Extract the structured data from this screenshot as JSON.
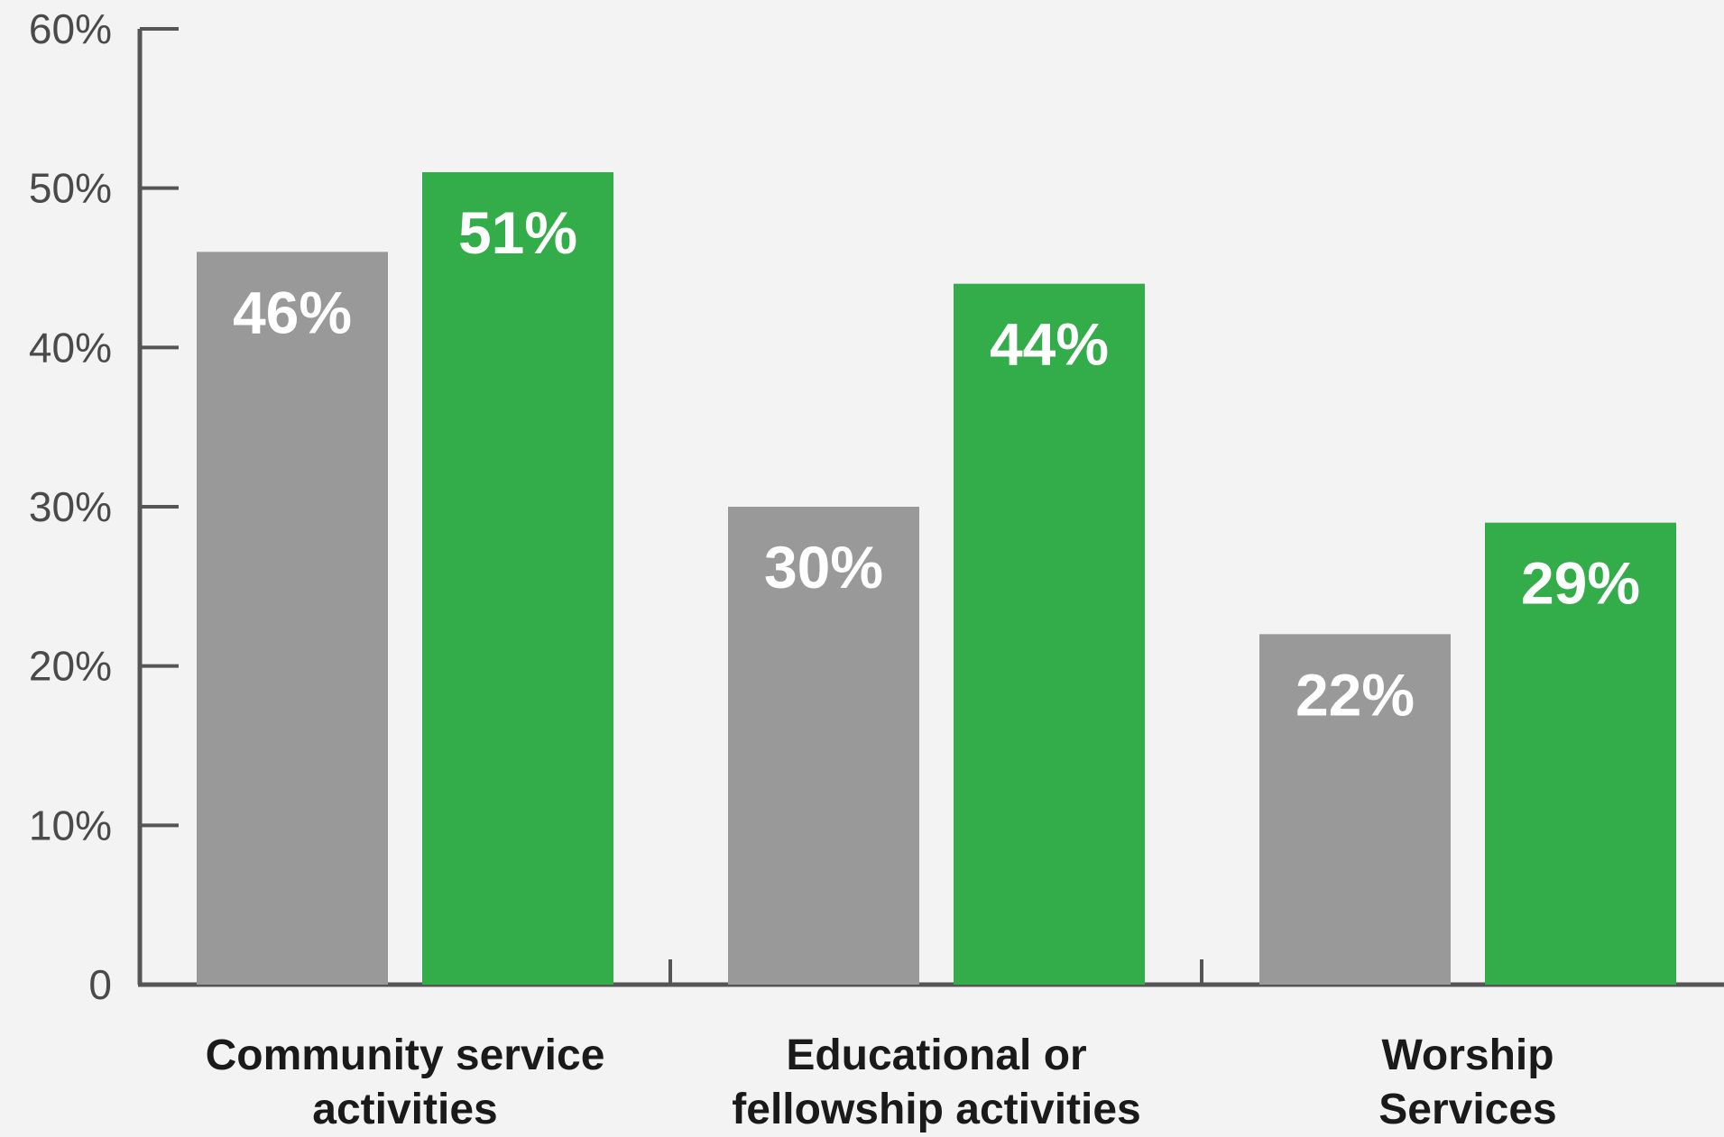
{
  "chart_data": {
    "type": "bar",
    "categories": [
      [
        "Community service",
        "activities"
      ],
      [
        "Educational or",
        "fellowship activities"
      ],
      [
        "Worship",
        "Services"
      ]
    ],
    "series": [
      {
        "values": [
          46,
          30,
          22
        ],
        "labels": [
          "46%",
          "30%",
          "22%"
        ],
        "color": "#999999"
      },
      {
        "values": [
          51,
          44,
          29
        ],
        "labels": [
          "51%",
          "44%",
          "29%"
        ],
        "color": "#33ad4a"
      }
    ],
    "yticks": [
      {
        "value": 0,
        "label": "0"
      },
      {
        "value": 10,
        "label": "10%"
      },
      {
        "value": 20,
        "label": "20%"
      },
      {
        "value": 30,
        "label": "30%"
      },
      {
        "value": 40,
        "label": "40%"
      },
      {
        "value": 50,
        "label": "50%"
      },
      {
        "value": 60,
        "label": "60%"
      }
    ],
    "ylim": [
      0,
      60
    ],
    "grid": false,
    "legend": "none",
    "axis_color": "#555555"
  }
}
